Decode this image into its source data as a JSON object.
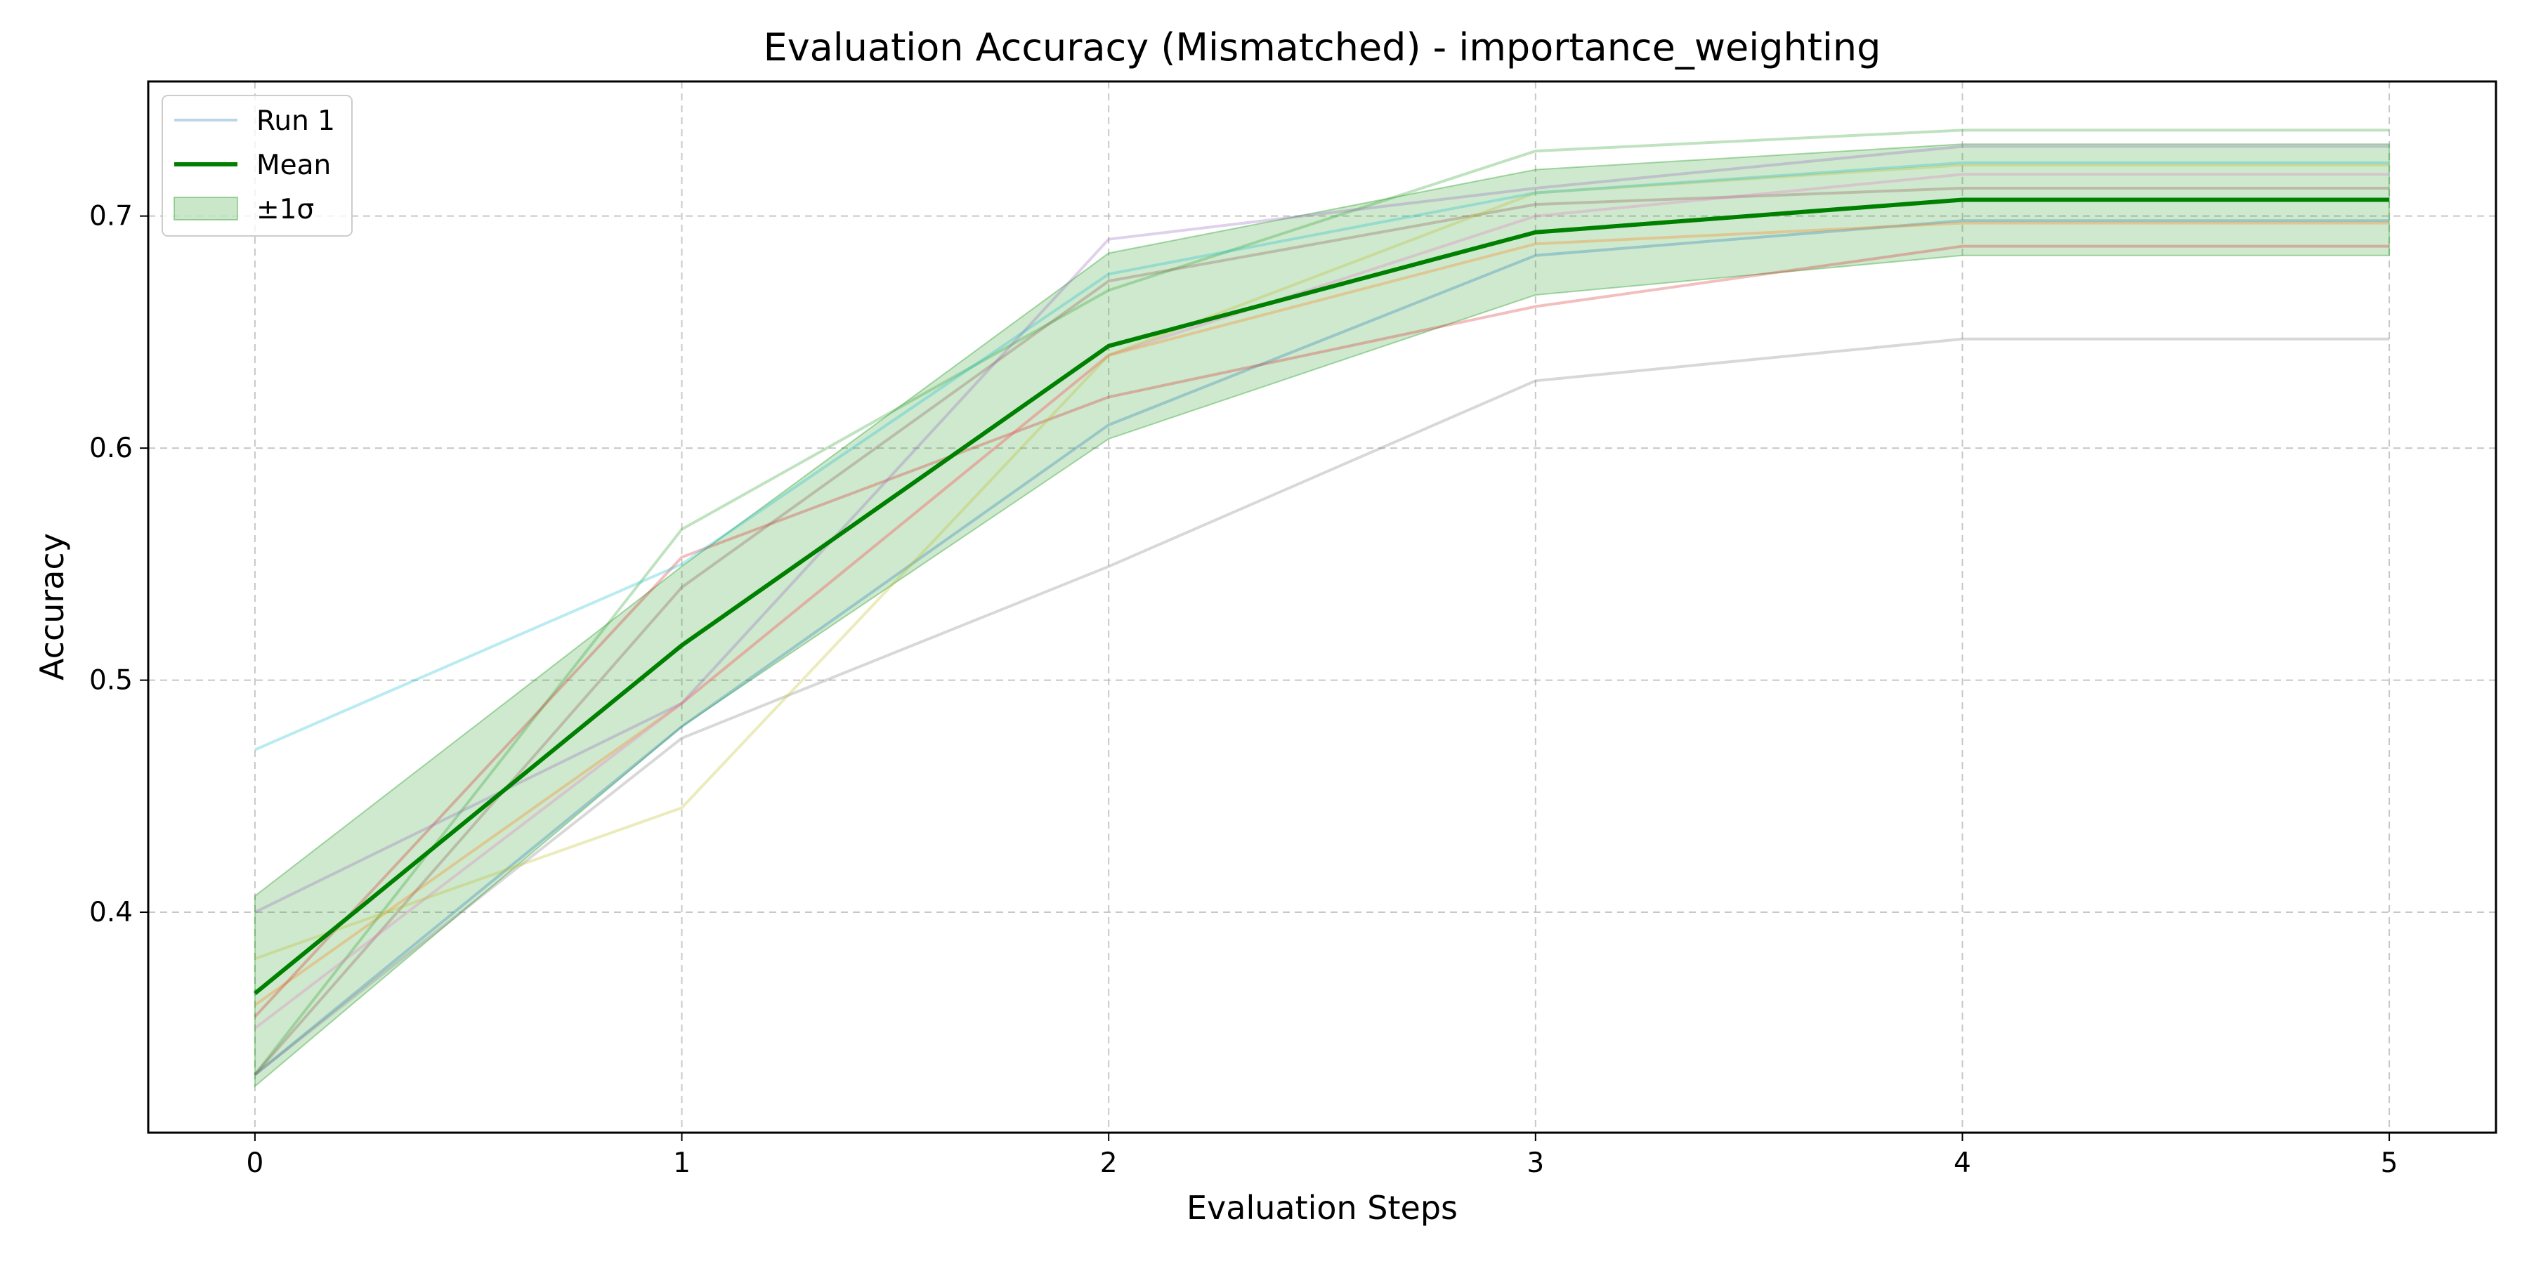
{
  "chart_data": {
    "type": "line",
    "title": "Evaluation Accuracy (Mismatched) - importance_weighting",
    "xlabel": "Evaluation Steps",
    "ylabel": "Accuracy",
    "x": [
      0,
      1,
      2,
      3,
      4,
      5
    ],
    "xlim": [
      -0.25,
      5.25
    ],
    "ylim": [
      0.305,
      0.758
    ],
    "xticks": [
      "0",
      "1",
      "2",
      "3",
      "4",
      "5"
    ],
    "yticks": [
      "0.4",
      "0.5",
      "0.6",
      "0.7"
    ],
    "ytick_values": [
      0.4,
      0.5,
      0.6,
      0.7
    ],
    "grid": true,
    "legend_position": "top-left",
    "legend": {
      "run_label": "Run 1",
      "mean_label": "Mean",
      "band_label": "±1σ"
    },
    "runs": [
      {
        "color": "#1f77b4",
        "values": [
          0.33,
          0.48,
          0.61,
          0.683,
          0.698,
          0.698
        ]
      },
      {
        "color": "#ff7f0e",
        "values": [
          0.36,
          0.49,
          0.64,
          0.688,
          0.697,
          0.697
        ]
      },
      {
        "color": "#2ca02c",
        "values": [
          0.33,
          0.565,
          0.668,
          0.728,
          0.737,
          0.737
        ]
      },
      {
        "color": "#d62728",
        "values": [
          0.355,
          0.553,
          0.622,
          0.661,
          0.687,
          0.687
        ]
      },
      {
        "color": "#9467bd",
        "values": [
          0.4,
          0.49,
          0.69,
          0.712,
          0.73,
          0.73
        ]
      },
      {
        "color": "#8c564b",
        "values": [
          0.33,
          0.54,
          0.672,
          0.705,
          0.712,
          0.712
        ]
      },
      {
        "color": "#e377c2",
        "values": [
          0.35,
          0.49,
          0.64,
          0.7,
          0.718,
          0.718
        ]
      },
      {
        "color": "#7f7f7f",
        "values": [
          0.33,
          0.475,
          0.549,
          0.629,
          0.647,
          0.647
        ]
      },
      {
        "color": "#bcbd22",
        "values": [
          0.38,
          0.445,
          0.64,
          0.71,
          0.722,
          0.722
        ]
      },
      {
        "color": "#17becf",
        "values": [
          0.47,
          0.55,
          0.675,
          0.71,
          0.723,
          0.723
        ]
      }
    ],
    "mean": {
      "name": "Mean",
      "color": "#008000",
      "values": [
        0.365,
        0.515,
        0.644,
        0.693,
        0.707,
        0.707
      ]
    },
    "band": {
      "name": "±1σ",
      "color": "#2ca02c",
      "upper": [
        0.407,
        0.549,
        0.684,
        0.72,
        0.731,
        0.731
      ],
      "lower": [
        0.325,
        0.48,
        0.604,
        0.666,
        0.683,
        0.683
      ]
    }
  }
}
